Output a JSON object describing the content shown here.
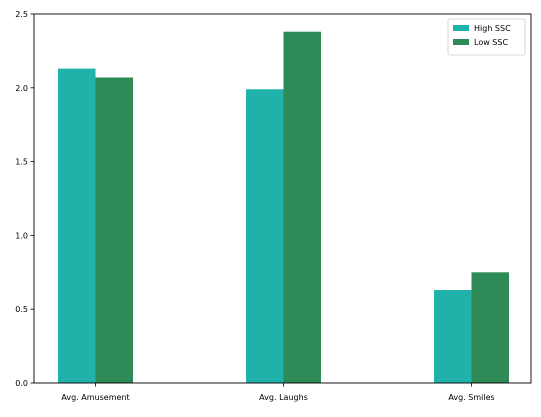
{
  "chart_data": {
    "type": "bar",
    "title": "",
    "xlabel": "",
    "ylabel": "",
    "categories": [
      "Avg. Amusement",
      "Avg. Laughs",
      "Avg. Smiles"
    ],
    "series": [
      {
        "name": "High SSC",
        "color": "#20b2aa",
        "values": [
          2.13,
          1.99,
          0.63
        ]
      },
      {
        "name": "Low SSC",
        "color": "#2e8b57",
        "values": [
          2.07,
          2.38,
          0.75
        ]
      }
    ],
    "ylim": [
      0,
      2.5
    ],
    "yticks": [
      "0.0",
      "0.5",
      "1.0",
      "1.5",
      "2.0",
      "2.5"
    ],
    "grid": false,
    "legend_position": "top-right"
  }
}
